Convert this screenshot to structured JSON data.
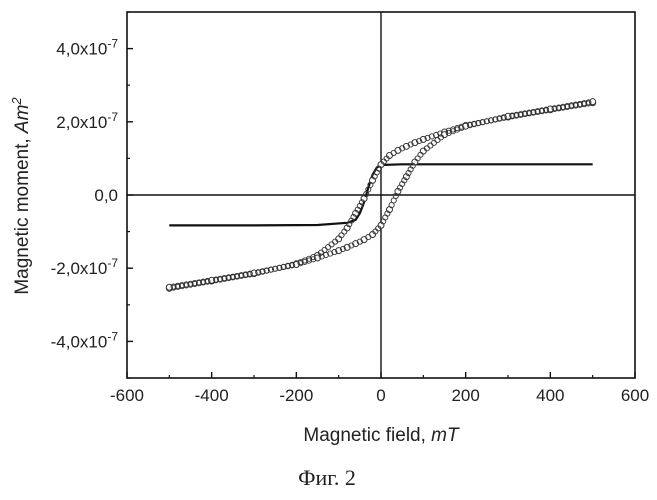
{
  "chart_data": {
    "type": "line",
    "title": "",
    "xlabel": {
      "text": "Magnetic field, ",
      "italic": "mT"
    },
    "ylabel": {
      "text": "Magnetic moment, ",
      "italic": "Am",
      "sup": "2"
    },
    "xlim": [
      -600,
      600
    ],
    "ylim": [
      -5e-07,
      5e-07
    ],
    "xticks": [
      -600,
      -400,
      -200,
      0,
      200,
      400,
      600
    ],
    "xtick_labels": [
      "-600",
      "-400",
      "-200",
      "0",
      "200",
      "400",
      "600"
    ],
    "yticks": [
      4e-07,
      2e-07,
      0,
      -2e-07,
      -4e-07
    ],
    "ytick_labels": [
      {
        "mant": "4,0x10",
        "exp": "-7"
      },
      {
        "mant": "2,0x10",
        "exp": "-7"
      },
      {
        "mant": "0,0",
        "exp": ""
      },
      {
        "mant": "-2,0x10",
        "exp": "-7"
      },
      {
        "mant": "-4,0x10",
        "exp": "-7"
      }
    ],
    "grid": false,
    "legend": "none",
    "series": [
      {
        "style": "solid",
        "color": "#111111",
        "x": [
          -500,
          -300,
          -150,
          -80,
          -60,
          -50,
          -40,
          -30,
          -20,
          -10,
          0,
          50,
          200,
          500
        ],
        "y": [
          -8.3e-08,
          -8.3e-08,
          -8.2e-08,
          -7.6e-08,
          -6.8e-08,
          -5e-08,
          -2e-08,
          2e-08,
          5.5e-08,
          7.5e-08,
          8.2e-08,
          8.4e-08,
          8.4e-08,
          8.4e-08
        ]
      },
      {
        "style": "open-circles",
        "color": "#333333",
        "x": [
          -500,
          -400,
          -300,
          -200,
          -150,
          -100,
          -80,
          -60,
          -40,
          -20,
          0,
          20,
          40,
          60,
          80,
          100,
          150,
          200,
          300,
          400,
          500
        ],
        "y": [
          -2.55e-07,
          -2.35e-07,
          -2.15e-07,
          -1.88e-07,
          -1.65e-07,
          -1.2e-07,
          -9e-08,
          -5e-08,
          -1e-08,
          4e-08,
          8.3e-08,
          1.08e-07,
          1.22e-07,
          1.33e-07,
          1.43e-07,
          1.52e-07,
          1.72e-07,
          1.9e-07,
          2.13e-07,
          2.33e-07,
          2.52e-07
        ]
      },
      {
        "style": "open-circles",
        "color": "#333333",
        "x": [
          -500,
          -400,
          -300,
          -200,
          -150,
          -100,
          -80,
          -60,
          -40,
          -20,
          0,
          20,
          40,
          60,
          80,
          100,
          150,
          200,
          300,
          400,
          500
        ],
        "y": [
          -2.52e-07,
          -2.33e-07,
          -2.13e-07,
          -1.9e-07,
          -1.72e-07,
          -1.52e-07,
          -1.43e-07,
          -1.33e-07,
          -1.22e-07,
          -1.08e-07,
          -8.3e-08,
          -4e-08,
          1e-08,
          5e-08,
          9e-08,
          1.2e-07,
          1.65e-07,
          1.88e-07,
          2.15e-07,
          2.35e-07,
          2.55e-07
        ]
      }
    ]
  },
  "caption": "Фиг. 2"
}
